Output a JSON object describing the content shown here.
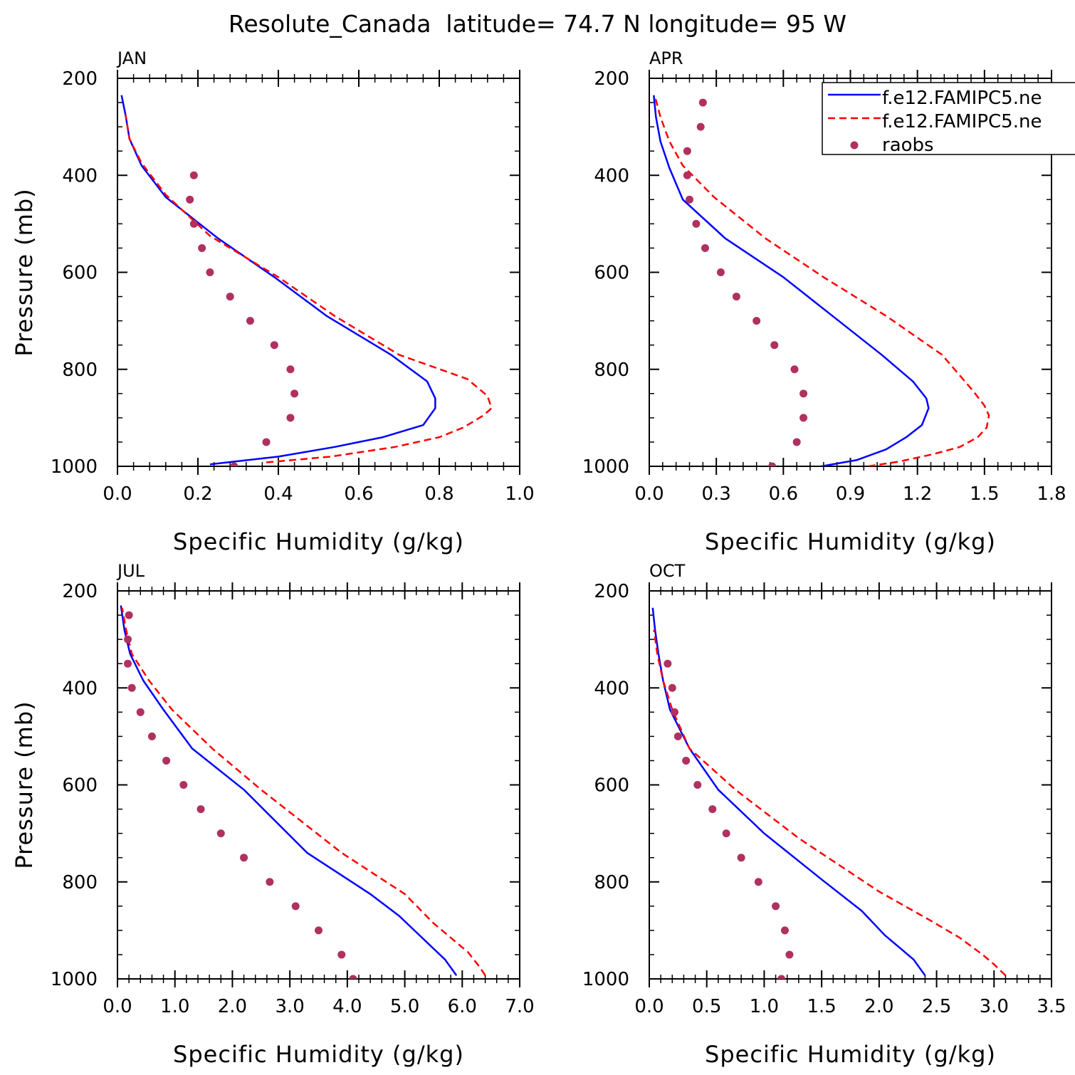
{
  "figure": {
    "title": "Resolute_Canada  latitude= 74.7 N longitude= 95 W"
  },
  "legend": {
    "entries": [
      {
        "label": "f.e12.FAMIPC5.ne",
        "style": "solid",
        "color": "#0000ff"
      },
      {
        "label": "f.e12.FAMIPC5.ne",
        "style": "dashed",
        "color": "#ff0000"
      },
      {
        "label": "raobs",
        "style": "dots",
        "color": "#b03060"
      }
    ]
  },
  "chart_data": [
    {
      "type": "line",
      "panel": "JAN",
      "title": "JAN",
      "xlabel": "Specific Humidity (g/kg)",
      "ylabel": "Pressure (mb)",
      "xlim": [
        0.0,
        1.0
      ],
      "ylim": [
        1000,
        200
      ],
      "xticks": [
        "0.0",
        "0.2",
        "0.4",
        "0.6",
        "0.8",
        "1.0"
      ],
      "yticks": [
        "200",
        "400",
        "600",
        "800",
        "1000"
      ],
      "series": [
        {
          "style": "solid",
          "color": "#0000ff",
          "x": [
            0.23,
            0.4,
            0.54,
            0.66,
            0.76,
            0.79,
            0.79,
            0.77,
            0.68,
            0.52,
            0.39,
            0.25,
            0.12,
            0.06,
            0.03,
            0.02,
            0.01
          ],
          "y": [
            996,
            980,
            960,
            940,
            915,
            880,
            860,
            825,
            770,
            690,
            610,
            530,
            445,
            380,
            325,
            275,
            235
          ]
        },
        {
          "style": "dashed",
          "color": "#ff0000",
          "x": [
            0.37,
            0.53,
            0.69,
            0.8,
            0.86,
            0.91,
            0.93,
            0.92,
            0.87,
            0.7,
            0.54,
            0.4,
            0.23,
            0.12,
            0.06,
            0.03,
            0.02
          ],
          "y": [
            992,
            980,
            960,
            940,
            920,
            895,
            880,
            855,
            820,
            770,
            690,
            610,
            525,
            440,
            375,
            325,
            275
          ]
        }
      ],
      "raobs": {
        "color": "#b03060",
        "x": [
          0.29,
          0.37,
          0.43,
          0.44,
          0.43,
          0.39,
          0.33,
          0.28,
          0.23,
          0.21,
          0.19,
          0.18,
          0.19
        ],
        "y": [
          1000,
          950,
          900,
          850,
          800,
          750,
          700,
          650,
          600,
          550,
          500,
          450,
          400
        ]
      }
    },
    {
      "type": "line",
      "panel": "APR",
      "title": "APR",
      "xlabel": "Specific Humidity (g/kg)",
      "ylabel": "",
      "xlim": [
        0.0,
        1.8
      ],
      "ylim": [
        1000,
        200
      ],
      "xticks": [
        "0.0",
        "0.3",
        "0.6",
        "0.9",
        "1.2",
        "1.5",
        "1.8"
      ],
      "yticks": [
        "200",
        "400",
        "600",
        "800",
        "1000"
      ],
      "series": [
        {
          "style": "solid",
          "color": "#0000ff",
          "x": [
            0.77,
            0.93,
            1.06,
            1.15,
            1.22,
            1.25,
            1.24,
            1.18,
            1.04,
            0.82,
            0.6,
            0.34,
            0.15,
            0.09,
            0.05,
            0.03,
            0.02
          ],
          "y": [
            1000,
            987,
            965,
            940,
            915,
            880,
            860,
            825,
            770,
            690,
            610,
            530,
            450,
            385,
            330,
            280,
            235
          ]
        },
        {
          "style": "dashed",
          "color": "#ff0000",
          "x": [
            0.98,
            1.12,
            1.27,
            1.39,
            1.47,
            1.51,
            1.52,
            1.5,
            1.45,
            1.31,
            1.06,
            0.78,
            0.52,
            0.29,
            0.15,
            0.09,
            0.05,
            0.03,
            0.02
          ],
          "y": [
            1000,
            990,
            975,
            960,
            940,
            920,
            895,
            875,
            845,
            770,
            690,
            610,
            530,
            445,
            380,
            330,
            280,
            245,
            235
          ]
        }
      ],
      "raobs": {
        "color": "#b03060",
        "x": [
          0.55,
          0.66,
          0.69,
          0.69,
          0.65,
          0.56,
          0.48,
          0.39,
          0.32,
          0.25,
          0.21,
          0.18,
          0.17,
          0.17,
          0.23,
          0.24
        ],
        "y": [
          1000,
          950,
          900,
          850,
          800,
          750,
          700,
          650,
          600,
          550,
          500,
          450,
          400,
          350,
          300,
          250
        ]
      }
    },
    {
      "type": "line",
      "panel": "JUL",
      "title": "JUL",
      "xlabel": "Specific Humidity (g/kg)",
      "ylabel": "Pressure (mb)",
      "xlim": [
        0.0,
        7.0
      ],
      "ylim": [
        1000,
        200
      ],
      "xticks": [
        "0.0",
        "1.0",
        "2.0",
        "3.0",
        "4.0",
        "5.0",
        "6.0",
        "7.0"
      ],
      "yticks": [
        "200",
        "400",
        "600",
        "800",
        "1000"
      ],
      "series": [
        {
          "style": "solid",
          "color": "#0000ff",
          "x": [
            5.9,
            5.7,
            5.3,
            4.9,
            4.4,
            3.3,
            2.2,
            1.3,
            0.8,
            0.45,
            0.22,
            0.12,
            0.06
          ],
          "y": [
            993,
            960,
            915,
            870,
            825,
            740,
            610,
            525,
            445,
            385,
            330,
            280,
            230
          ]
        },
        {
          "style": "dashed",
          "color": "#ff0000",
          "x": [
            6.4,
            6.3,
            6.1,
            5.8,
            5.5,
            5.0,
            3.9,
            2.5,
            1.65,
            0.95,
            0.55,
            0.25,
            0.15,
            0.08
          ],
          "y": [
            993,
            975,
            945,
            915,
            885,
            825,
            740,
            610,
            525,
            445,
            385,
            330,
            280,
            235
          ]
        }
      ],
      "raobs": {
        "color": "#b03060",
        "x": [
          4.1,
          3.9,
          3.5,
          3.1,
          2.65,
          2.2,
          1.8,
          1.45,
          1.15,
          0.85,
          0.6,
          0.4,
          0.25,
          0.18,
          0.18,
          0.2
        ],
        "y": [
          1000,
          950,
          900,
          850,
          800,
          750,
          700,
          650,
          600,
          550,
          500,
          450,
          400,
          350,
          300,
          250
        ]
      }
    },
    {
      "type": "line",
      "panel": "OCT",
      "title": "OCT",
      "xlabel": "Specific Humidity (g/kg)",
      "ylabel": "",
      "xlim": [
        0.0,
        3.5
      ],
      "ylim": [
        1000,
        200
      ],
      "xticks": [
        "0.0",
        "0.5",
        "1.0",
        "1.5",
        "2.0",
        "2.5",
        "3.0",
        "3.5"
      ],
      "yticks": [
        "200",
        "400",
        "600",
        "800",
        "1000"
      ],
      "series": [
        {
          "style": "solid",
          "color": "#0000ff",
          "x": [
            2.4,
            2.3,
            2.05,
            1.85,
            1.5,
            1.0,
            0.6,
            0.35,
            0.18,
            0.12,
            0.08,
            0.05,
            0.03
          ],
          "y": [
            993,
            960,
            910,
            860,
            795,
            700,
            610,
            525,
            445,
            385,
            330,
            280,
            235
          ]
        },
        {
          "style": "dashed",
          "color": "#ff0000",
          "x": [
            3.1,
            3.0,
            2.9,
            2.7,
            2.45,
            2.0,
            1.3,
            0.75,
            0.35,
            0.2,
            0.12,
            0.07,
            0.04
          ],
          "y": [
            993,
            970,
            950,
            915,
            880,
            820,
            710,
            610,
            525,
            445,
            385,
            330,
            280
          ]
        }
      ],
      "raobs": {
        "color": "#b03060",
        "x": [
          1.15,
          1.22,
          1.18,
          1.1,
          0.95,
          0.8,
          0.67,
          0.55,
          0.42,
          0.32,
          0.25,
          0.22,
          0.2,
          0.16
        ],
        "y": [
          1000,
          950,
          900,
          850,
          800,
          750,
          700,
          650,
          600,
          550,
          500,
          450,
          400,
          350
        ]
      }
    }
  ]
}
